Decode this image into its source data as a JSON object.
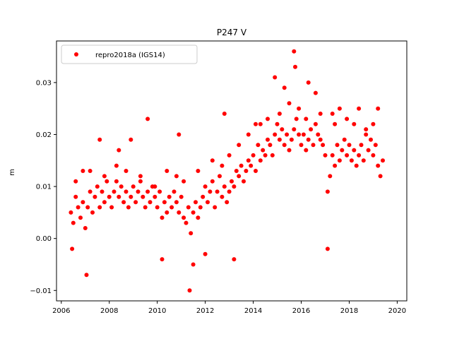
{
  "chart_data": {
    "type": "scatter",
    "title": "P247 V",
    "xlabel": "",
    "ylabel": "m",
    "xlim": [
      2005.8,
      2020.4
    ],
    "ylim": [
      -0.012,
      0.038
    ],
    "xticks": [
      2006,
      2008,
      2010,
      2012,
      2014,
      2016,
      2018,
      2020
    ],
    "xtick_labels": [
      "2006",
      "2008",
      "2010",
      "2012",
      "2014",
      "2016",
      "2018",
      "2020"
    ],
    "yticks": [
      -0.01,
      0.0,
      0.01,
      0.02,
      0.03
    ],
    "ytick_labels": [
      "−0.01",
      "0.00",
      "0.01",
      "0.02",
      "0.03"
    ],
    "grid": false,
    "legend": {
      "placement": "top-left",
      "entries": [
        "repro2018a (IGS14)"
      ]
    },
    "series": [
      {
        "name": "repro2018a (IGS14)",
        "color": "#ff0000",
        "marker": "circle",
        "x": [
          2006.4,
          2006.5,
          2006.6,
          2006.7,
          2006.8,
          2006.9,
          2007.0,
          2007.1,
          2007.2,
          2007.3,
          2007.4,
          2007.5,
          2007.6,
          2007.7,
          2007.8,
          2007.9,
          2008.0,
          2008.1,
          2008.2,
          2008.3,
          2008.4,
          2008.5,
          2008.6,
          2008.7,
          2008.8,
          2008.9,
          2009.0,
          2009.1,
          2009.2,
          2009.3,
          2009.4,
          2009.5,
          2009.6,
          2009.7,
          2009.8,
          2009.9,
          2010.0,
          2010.1,
          2010.2,
          2010.3,
          2010.4,
          2010.5,
          2010.6,
          2010.7,
          2010.8,
          2010.9,
          2011.0,
          2011.1,
          2011.2,
          2011.3,
          2011.4,
          2011.5,
          2011.6,
          2011.7,
          2011.8,
          2011.9,
          2012.0,
          2012.1,
          2012.2,
          2012.3,
          2012.4,
          2012.5,
          2012.6,
          2012.7,
          2012.8,
          2012.9,
          2013.0,
          2013.1,
          2013.2,
          2013.3,
          2013.4,
          2013.5,
          2013.6,
          2013.7,
          2013.8,
          2013.9,
          2014.0,
          2014.1,
          2014.2,
          2014.3,
          2014.4,
          2014.5,
          2014.6,
          2014.7,
          2014.8,
          2014.9,
          2015.0,
          2015.1,
          2015.2,
          2015.3,
          2015.4,
          2015.5,
          2015.6,
          2015.7,
          2015.8,
          2015.9,
          2016.0,
          2016.1,
          2016.2,
          2016.3,
          2016.4,
          2016.5,
          2016.6,
          2016.7,
          2016.8,
          2016.9,
          2017.0,
          2017.1,
          2017.2,
          2017.3,
          2017.4,
          2017.5,
          2017.6,
          2017.7,
          2017.8,
          2017.9,
          2018.0,
          2018.1,
          2018.2,
          2018.3,
          2018.4,
          2018.5,
          2018.6,
          2018.7,
          2018.8,
          2018.9,
          2019.0,
          2019.1,
          2019.2,
          2019.3,
          2019.4,
          2006.45,
          2006.9,
          2007.05,
          2007.6,
          2008.4,
          2008.9,
          2009.6,
          2010.2,
          2010.9,
          2011.35,
          2011.5,
          2012.0,
          2012.8,
          2013.2,
          2014.1,
          2014.9,
          2015.3,
          2015.7,
          2015.75,
          2016.3,
          2016.6,
          2017.1,
          2017.3,
          2017.6,
          2018.4,
          2019.2,
          2006.6,
          2007.2,
          2007.8,
          2008.3,
          2008.7,
          2009.3,
          2009.9,
          2010.4,
          2010.8,
          2011.1,
          2011.7,
          2012.3,
          2012.7,
          2013.0,
          2013.4,
          2013.8,
          2014.3,
          2014.6,
          2015.1,
          2015.5,
          2015.9,
          2016.2,
          2016.8,
          2017.4,
          2017.9,
          2018.2,
          2018.7,
          2019.0
        ],
        "y": [
          0.005,
          0.003,
          0.008,
          0.006,
          0.004,
          0.007,
          0.002,
          0.006,
          0.009,
          0.005,
          0.008,
          0.01,
          0.006,
          0.009,
          0.007,
          0.011,
          0.008,
          0.006,
          0.009,
          0.011,
          0.008,
          0.01,
          0.007,
          0.009,
          0.006,
          0.008,
          0.01,
          0.007,
          0.009,
          0.011,
          0.008,
          0.006,
          0.009,
          0.007,
          0.01,
          0.008,
          0.006,
          0.009,
          0.004,
          0.007,
          0.005,
          0.008,
          0.006,
          0.009,
          0.007,
          0.005,
          0.008,
          0.004,
          0.003,
          0.006,
          0.001,
          0.005,
          0.007,
          0.004,
          0.006,
          0.008,
          0.01,
          0.007,
          0.009,
          0.011,
          0.006,
          0.009,
          0.012,
          0.008,
          0.01,
          0.007,
          0.009,
          0.011,
          0.01,
          0.013,
          0.012,
          0.014,
          0.011,
          0.013,
          0.015,
          0.014,
          0.016,
          0.013,
          0.018,
          0.015,
          0.017,
          0.016,
          0.019,
          0.018,
          0.016,
          0.02,
          0.022,
          0.019,
          0.021,
          0.018,
          0.02,
          0.017,
          0.019,
          0.021,
          0.023,
          0.02,
          0.018,
          0.02,
          0.017,
          0.019,
          0.021,
          0.018,
          0.022,
          0.02,
          0.019,
          0.018,
          0.016,
          0.009,
          0.012,
          0.016,
          0.014,
          0.018,
          0.015,
          0.017,
          0.019,
          0.016,
          0.018,
          0.015,
          0.017,
          0.014,
          0.016,
          0.018,
          0.015,
          0.02,
          0.017,
          0.019,
          0.016,
          0.018,
          0.014,
          0.012,
          0.015,
          -0.002,
          0.013,
          -0.007,
          0.019,
          0.017,
          0.019,
          0.023,
          -0.004,
          0.02,
          -0.01,
          -0.005,
          -0.003,
          0.024,
          -0.004,
          0.022,
          0.031,
          0.029,
          0.036,
          0.033,
          0.03,
          0.028,
          -0.002,
          0.024,
          0.025,
          0.025,
          0.025,
          0.011,
          0.013,
          0.012,
          0.014,
          0.013,
          0.012,
          0.01,
          0.013,
          0.012,
          0.011,
          0.013,
          0.015,
          0.014,
          0.016,
          0.018,
          0.02,
          0.022,
          0.023,
          0.024,
          0.026,
          0.025,
          0.023,
          0.024,
          0.022,
          0.023,
          0.022,
          0.021,
          0.022
        ]
      }
    ]
  }
}
